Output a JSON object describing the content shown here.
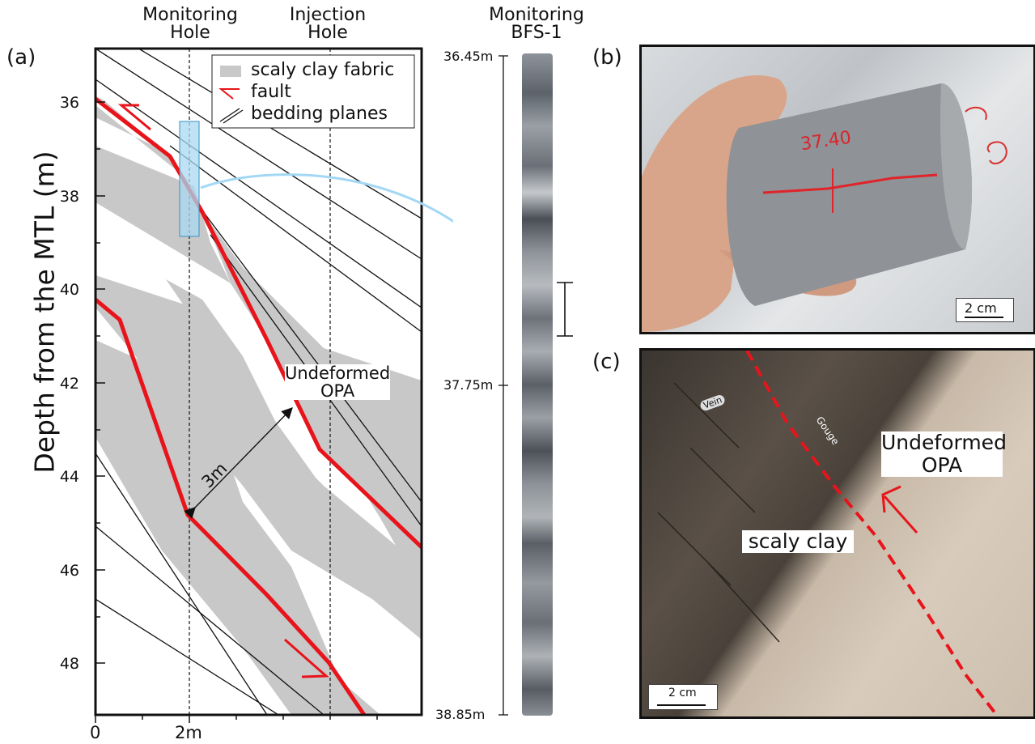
{
  "panel_a": {
    "label": "(a)",
    "col_monitoring": "Monitoring\nHole",
    "col_injection": "Injection\nHole",
    "y_axis_label": "Depth from the MTL (m)",
    "y_ticks": [
      "36",
      "38",
      "40",
      "42",
      "44",
      "46",
      "48"
    ],
    "x_ticks": [
      "0",
      "2m"
    ],
    "legend": {
      "scaly": "scaly clay fabric",
      "fault": "fault",
      "bedding": "bedding planes"
    },
    "undeformed": "Undeformed\nOPA",
    "distance": "3m",
    "colors": {
      "fault": "#e8141b",
      "scaly": "#c8c8c8",
      "sample": "#a9d9f2",
      "arrow": "#a3d8f5"
    }
  },
  "core": {
    "title": "Monitoring\nBFS-1",
    "depth_top": "36.45m",
    "depth_mid": "37.75m",
    "depth_bottom": "38.85m"
  },
  "panel_b": {
    "label": "(b)",
    "sample_depth": "37.40",
    "scale": "2 cm"
  },
  "panel_c": {
    "label": "(c)",
    "vein": "Vein",
    "gouge": "Gouge",
    "undeformed": "Undeformed\nOPA",
    "scaly": "scaly clay",
    "scale": "2 cm"
  }
}
